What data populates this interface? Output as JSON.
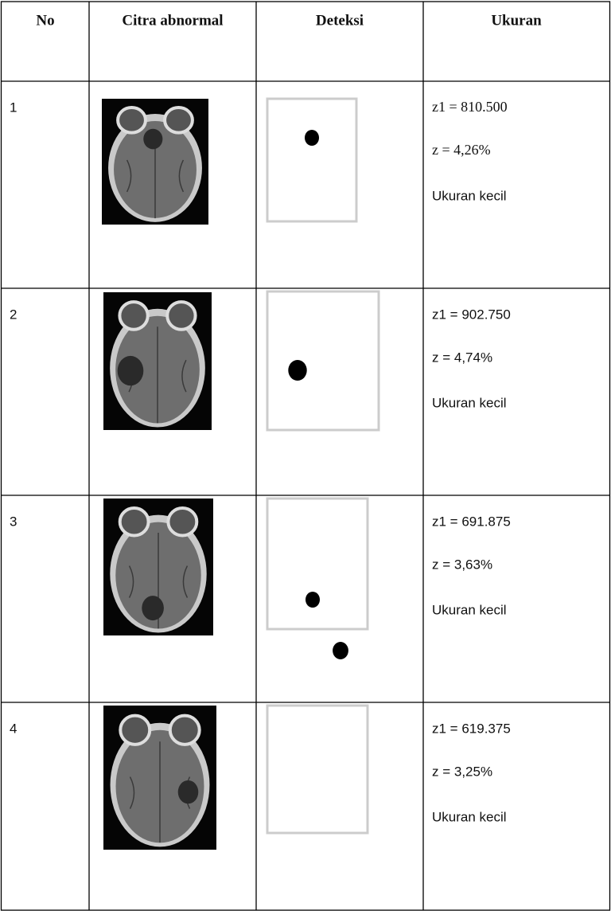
{
  "table": {
    "header": [
      "No",
      "Citra abnormal",
      "Deteksi",
      "Ukuran"
    ],
    "rows": [
      {
        "no": "1",
        "z1": "z1 = 810.500",
        "z": "z = 4,26%",
        "size": "Ukuran kecil"
      },
      {
        "no": "2",
        "z1": "z1 = 902.750",
        "z": "z = 4,74%",
        "size": "Ukuran kecil"
      },
      {
        "no": "3",
        "z1": "z1 = 691.875",
        "z": "z = 3,63%",
        "size": "Ukuran kecil"
      },
      {
        "no": "4",
        "z1": "z1 = 619.375",
        "z": "z = 3,25%",
        "size": "Ukuran kecil"
      }
    ]
  }
}
